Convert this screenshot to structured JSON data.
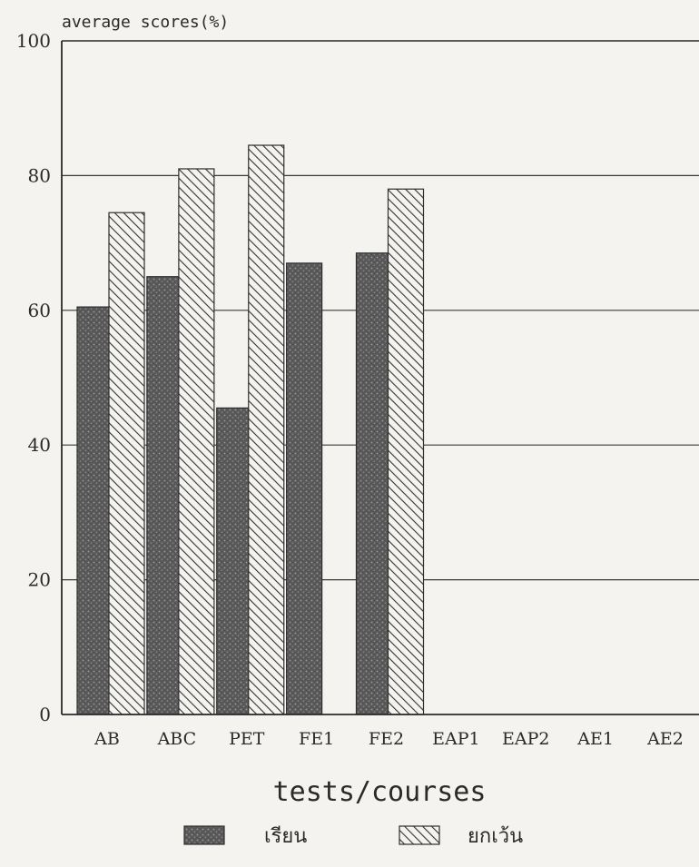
{
  "chart_data": {
    "type": "bar",
    "title": "",
    "ylabel": "average scores(%)",
    "xlabel": "tests/courses",
    "ylim": [
      0,
      100
    ],
    "yticks": [
      0,
      20,
      40,
      60,
      80,
      100
    ],
    "grid": true,
    "legend_position": "bottom",
    "categories": [
      "AB",
      "ABC",
      "PET",
      "FE1",
      "FE2",
      "EAP1",
      "EAP2",
      "AE1",
      "AE2"
    ],
    "series": [
      {
        "name": "เรียน",
        "pattern": "stippled-dark",
        "color": "#5e5e5e",
        "values": [
          60.5,
          65,
          45.5,
          67,
          68.5,
          null,
          null,
          null,
          null
        ]
      },
      {
        "name": "ยกเว้น",
        "pattern": "diagonal-hatch",
        "color": "#3a3a3a",
        "values": [
          74.5,
          81,
          84.5,
          null,
          78,
          null,
          null,
          null,
          null
        ]
      }
    ]
  }
}
